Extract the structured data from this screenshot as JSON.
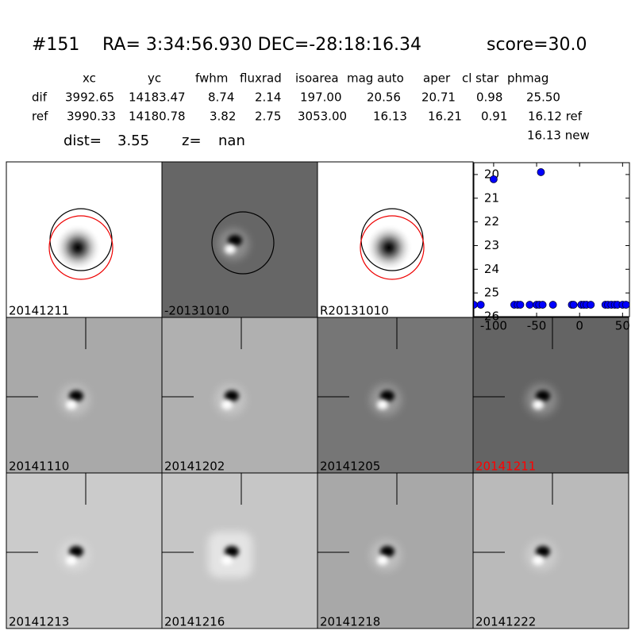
{
  "header": {
    "id": "#151",
    "coords": "RA= 3:34:56.930 DEC=-28:18:16.34",
    "score": "score=30.0"
  },
  "table": {
    "columns": [
      "xc",
      "yc",
      "fwhm",
      "fluxrad",
      "isoarea",
      "mag auto",
      "aper",
      "cl star",
      "phmag"
    ],
    "rows": [
      {
        "label": "dif",
        "cells": [
          "3992.65",
          "14183.47",
          "8.74",
          "2.14",
          "197.00",
          "20.56",
          "20.71",
          "0.98",
          "25.50"
        ]
      },
      {
        "label": "ref",
        "cells": [
          "3990.33",
          "14180.78",
          "3.82",
          "2.75",
          "3053.00",
          "16.13",
          "16.21",
          "0.91",
          "16.12 ref"
        ]
      }
    ],
    "extra": "16.13 new"
  },
  "dist": {
    "label": "dist=",
    "value": "3.55"
  },
  "z": {
    "label": "z=",
    "value": "nan"
  },
  "panels": [
    {
      "label": "20141211"
    },
    {
      "label": "-20131010"
    },
    {
      "label": "R20131010"
    },
    {
      "label": "20141110"
    },
    {
      "label": "20141202"
    },
    {
      "label": "20141205"
    },
    {
      "label": "20141211",
      "label_color": "#ff0000"
    },
    {
      "label": "20141213"
    },
    {
      "label": "20141216"
    },
    {
      "label": "20141218"
    },
    {
      "label": "20141222"
    }
  ],
  "chart_data": {
    "type": "scatter",
    "color": "#0000ff",
    "x": [
      -100,
      -45,
      -123,
      -115,
      -76,
      -72,
      -69,
      -58,
      -50,
      -47,
      -43,
      -31,
      -9,
      -7,
      2,
      5,
      8,
      13,
      30,
      33,
      37,
      41,
      44,
      50,
      54
    ],
    "values": [
      20.2,
      19.9,
      25.5,
      25.5,
      25.5,
      25.5,
      25.5,
      25.5,
      25.5,
      25.5,
      25.5,
      25.5,
      25.5,
      25.5,
      25.5,
      25.5,
      25.5,
      25.5,
      25.5,
      25.5,
      25.5,
      25.5,
      25.5,
      25.5,
      25.5
    ],
    "xlim": [
      -123,
      58
    ],
    "ylim": [
      26,
      19.5
    ],
    "xticks": [
      -100,
      -50,
      0,
      50
    ],
    "yticks": [
      20,
      21,
      22,
      23,
      24,
      25,
      26
    ]
  }
}
